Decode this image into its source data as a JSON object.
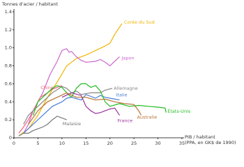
{
  "chart_data": {
    "type": "line",
    "ylabel": "Tonnes d'acier / habitant",
    "xlabel": [
      "PIB / habitant",
      "(PPA, en GK$ de 1990)"
    ],
    "xlim": [
      0,
      35
    ],
    "xticks": [
      0,
      5,
      10,
      15,
      20,
      25,
      30,
      35
    ],
    "ylim": [
      0,
      1.4
    ],
    "yticks": [
      0,
      0.2,
      0.4,
      0.6,
      0.8,
      {
        "value": 1,
        "label": "1.0"
      },
      1.2,
      1.4
    ],
    "series": [
      {
        "name": "Corée du Sud",
        "color": "#f0b400",
        "x": [
          1,
          3,
          5,
          7,
          9,
          11,
          13,
          15,
          17,
          19,
          20,
          21,
          22.5
        ],
        "values": [
          0.02,
          0.1,
          0.25,
          0.45,
          0.62,
          0.8,
          0.88,
          0.92,
          0.97,
          1.02,
          1.05,
          1.15,
          1.27
        ]
      },
      {
        "name": "Japon",
        "color": "#cc66cc",
        "x": [
          2,
          3,
          4,
          6,
          7.5,
          9,
          10,
          11,
          11.5,
          12,
          13,
          14,
          15,
          17,
          18,
          19,
          20,
          21,
          22
        ],
        "values": [
          0.05,
          0.15,
          0.3,
          0.5,
          0.7,
          0.85,
          0.97,
          0.99,
          0.95,
          0.96,
          0.9,
          0.86,
          0.84,
          0.85,
          0.87,
          0.84,
          0.8,
          0.85,
          0.9
        ]
      },
      {
        "name": "Chine",
        "color": "#f06080",
        "x": [
          1,
          2,
          3,
          4,
          5.5,
          7,
          8,
          9,
          10
        ],
        "values": [
          0.05,
          0.12,
          0.2,
          0.3,
          0.45,
          0.5,
          0.54,
          0.56,
          0.58
        ]
      },
      {
        "name": "Allemagne",
        "color": "#888888",
        "x": [
          2,
          3,
          4,
          5,
          6,
          8,
          10,
          11,
          12,
          13,
          14,
          16,
          18,
          19,
          20.5
        ],
        "values": [
          0.15,
          0.25,
          0.3,
          0.35,
          0.4,
          0.5,
          0.57,
          0.55,
          0.5,
          0.52,
          0.48,
          0.5,
          0.5,
          0.53,
          0.55
        ]
      },
      {
        "name": "Italie",
        "color": "#4a7fd4",
        "x": [
          2,
          4,
          6,
          8,
          10,
          11,
          12,
          14,
          15,
          16,
          17,
          18,
          19,
          20,
          21,
          22
        ],
        "values": [
          0.05,
          0.15,
          0.25,
          0.35,
          0.4,
          0.44,
          0.45,
          0.42,
          0.48,
          0.46,
          0.44,
          0.47,
          0.45,
          0.44,
          0.43,
          0.42
        ]
      },
      {
        "name": "États-Unis",
        "color": "#22bb22",
        "x": [
          4,
          5,
          6,
          7,
          8,
          9,
          10,
          11,
          12,
          13,
          14,
          15,
          16,
          17,
          18,
          19,
          20,
          22,
          24,
          26,
          28,
          30,
          31.5,
          31.7
        ],
        "values": [
          0.25,
          0.4,
          0.45,
          0.5,
          0.55,
          0.58,
          0.56,
          0.5,
          0.45,
          0.55,
          0.6,
          0.6,
          0.56,
          0.58,
          0.52,
          0.4,
          0.35,
          0.38,
          0.35,
          0.36,
          0.35,
          0.34,
          0.33,
          0.28
        ]
      },
      {
        "name": "France",
        "color": "#993399",
        "x": [
          10,
          12,
          14,
          15,
          16,
          17,
          18,
          19,
          20,
          21,
          22
        ],
        "values": [
          0.45,
          0.5,
          0.47,
          0.35,
          0.3,
          0.27,
          0.28,
          0.3,
          0.32,
          0.33,
          0.25
        ]
      },
      {
        "name": "Australie",
        "color": "#b87333",
        "x": [
          3,
          5,
          7,
          9,
          11,
          13,
          15,
          17,
          19,
          21,
          23,
          25,
          26,
          26.5
        ],
        "values": [
          0.15,
          0.3,
          0.4,
          0.45,
          0.5,
          0.45,
          0.45,
          0.42,
          0.43,
          0.4,
          0.38,
          0.37,
          0.3,
          0.25
        ]
      },
      {
        "name": "Malaisie",
        "color": "#777777",
        "x": [
          1,
          2,
          3,
          4,
          5,
          6,
          7,
          8,
          9,
          10,
          11
        ],
        "values": [
          0.02,
          0.05,
          0.05,
          0.08,
          0.1,
          0.12,
          0.15,
          0.2,
          0.24,
          0.22,
          0.2
        ]
      }
    ]
  }
}
